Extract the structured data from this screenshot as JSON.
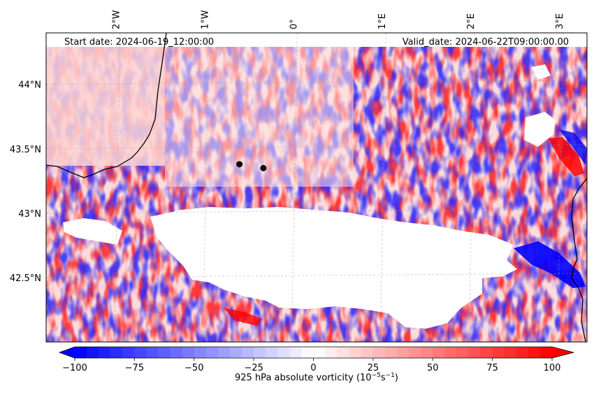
{
  "chart_data": {
    "type": "heatmap",
    "field": "925 hPa absolute vorticity",
    "start_label": "Start date: 2024-06-19_12:00:00",
    "valid_label": "Valid_date: 2024-06-22T09:00:00.00",
    "lon_ticks": [
      {
        "lon": -2,
        "label": "2°W"
      },
      {
        "lon": -1,
        "label": "1°W"
      },
      {
        "lon": 0,
        "label": "0°"
      },
      {
        "lon": 1,
        "label": "1°E"
      },
      {
        "lon": 2,
        "label": "2°E"
      },
      {
        "lon": 3,
        "label": "3°E"
      }
    ],
    "lat_ticks": [
      {
        "lat": 44.0,
        "label": "44°N"
      },
      {
        "lat": 43.5,
        "label": "43.5°N"
      },
      {
        "lat": 43.0,
        "label": "43°N"
      },
      {
        "lat": 42.5,
        "label": "42.5°N"
      }
    ],
    "lon_range": [
      -2.8,
      3.3
    ],
    "lat_range": [
      42.0,
      44.4
    ],
    "markers": [
      {
        "lon": -0.62,
        "lat": 43.38
      },
      {
        "lon": -0.35,
        "lat": 43.35
      }
    ],
    "colorbar": {
      "label_pre": "925 hPa absolute vorticity (10",
      "label_exp1": "−5",
      "label_mid": "s",
      "label_exp2": "−1",
      "label_post": ")",
      "min": -100,
      "max": 100,
      "step": 5,
      "ticks": [
        -100,
        -75,
        -50,
        -25,
        0,
        25,
        50,
        75,
        100
      ],
      "tick_labels": [
        "−100",
        "−75",
        "−50",
        "−25",
        "0",
        "25",
        "50",
        "75",
        "100"
      ],
      "colors": {
        "low": "#0000ff",
        "mid": "#ffffff",
        "high": "#ff0000"
      }
    }
  }
}
